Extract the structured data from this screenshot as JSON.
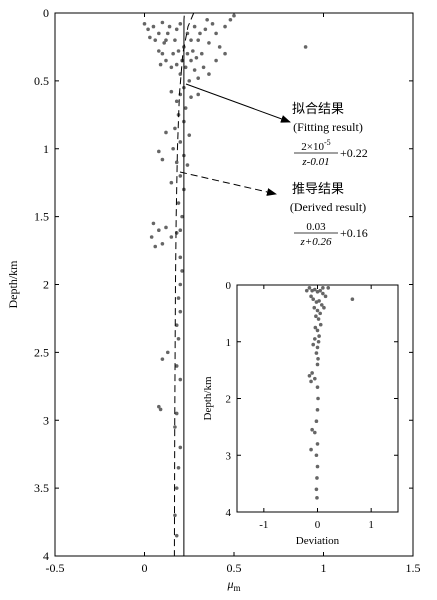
{
  "chart_data": [
    {
      "type": "scatter",
      "xlabel": "μ",
      "xlabel_sub": "m",
      "ylabel": "Depth/km",
      "xlim": [
        -0.5,
        1.5
      ],
      "ylim": [
        0,
        4
      ],
      "invert_y": true,
      "xticks": [
        -0.5,
        0,
        0.5,
        1,
        1.5
      ],
      "yticks": [
        0,
        0.5,
        1,
        1.5,
        2,
        2.5,
        3,
        3.5,
        4
      ],
      "series": [
        {
          "style": "points",
          "color": "#666666",
          "x": [
            0.0,
            0.02,
            0.05,
            0.08,
            0.1,
            0.12,
            0.14,
            0.16,
            0.18,
            0.2,
            0.22,
            0.24,
            0.26,
            0.28,
            0.3,
            0.32,
            0.34,
            0.36,
            0.38,
            0.4,
            0.42,
            0.45,
            0.48,
            0.15,
            0.2,
            0.25,
            0.18,
            0.22,
            0.28,
            0.3,
            0.12,
            0.1,
            0.06,
            0.03,
            0.08,
            0.24,
            0.26,
            0.33,
            0.35,
            0.4,
            0.17,
            0.19,
            0.21,
            0.23,
            0.27,
            0.29,
            0.31,
            0.13,
            0.11,
            0.09,
            0.2,
            0.18,
            0.23,
            0.15,
            0.26,
            0.19,
            0.22,
            0.17,
            0.12,
            0.25,
            0.2,
            0.16,
            0.22,
            0.1,
            0.08,
            0.18,
            0.24,
            0.2,
            0.15,
            0.22,
            0.19,
            0.21,
            0.2,
            0.05,
            0.08,
            0.04,
            0.1,
            0.15,
            0.18,
            0.12,
            0.06,
            0.2,
            0.21,
            0.2,
            0.19,
            0.2,
            0.18,
            0.19,
            0.1,
            0.13,
            0.18,
            0.2,
            0.08,
            0.09,
            0.18,
            0.17,
            0.2,
            0.19,
            0.18,
            0.17,
            0.18,
            0.9,
            0.5,
            0.45,
            0.36,
            0.3
          ],
          "values": [
            0.08,
            0.12,
            0.1,
            0.15,
            0.07,
            0.2,
            0.1,
            0.3,
            0.12,
            0.08,
            0.25,
            0.15,
            0.35,
            0.1,
            0.2,
            0.3,
            0.12,
            0.22,
            0.08,
            0.15,
            0.25,
            0.1,
            0.05,
            0.4,
            0.45,
            0.5,
            0.38,
            0.55,
            0.42,
            0.48,
            0.35,
            0.3,
            0.2,
            0.18,
            0.28,
            0.3,
            0.2,
            0.4,
            0.05,
            0.35,
            0.2,
            0.28,
            0.35,
            0.4,
            0.28,
            0.33,
            0.15,
            0.15,
            0.22,
            0.38,
            0.6,
            0.65,
            0.7,
            0.58,
            0.62,
            0.75,
            0.8,
            0.85,
            0.88,
            0.9,
            0.95,
            1.0,
            1.05,
            1.08,
            1.02,
            1.1,
            1.12,
            1.2,
            1.25,
            1.3,
            1.4,
            1.5,
            1.6,
            1.55,
            1.6,
            1.65,
            1.7,
            1.65,
            1.62,
            1.58,
            1.72,
            1.8,
            1.9,
            2.0,
            2.1,
            2.2,
            2.3,
            2.4,
            2.55,
            2.5,
            2.6,
            2.7,
            2.9,
            2.92,
            2.95,
            3.05,
            3.2,
            3.35,
            3.5,
            3.7,
            3.85,
            0.25,
            0.02,
            0.3,
            0.45,
            0.6
          ]
        },
        {
          "style": "solid",
          "color": "#000000",
          "x": [
            0.222,
            0.2205,
            0.22,
            0.22,
            0.22,
            0.22
          ],
          "values": [
            0.02,
            0.05,
            0.5,
            1,
            2,
            4
          ]
        },
        {
          "style": "dashed",
          "color": "#000000",
          "x": [
            0.275,
            0.243,
            0.214,
            0.195,
            0.184,
            0.177,
            0.173,
            0.169,
            0.167
          ],
          "values": [
            0,
            0.1,
            0.3,
            0.6,
            1,
            1.5,
            2,
            3,
            4
          ]
        }
      ],
      "annotations": [
        {
          "title": "拟合结果",
          "subtitle": "(Fitting result)",
          "numerator": "2×10",
          "numerator_sup": "-5",
          "denominator": "z-0.01",
          "tail": "+0.22"
        },
        {
          "title": "推导结果",
          "subtitle": "(Derived result)",
          "numerator": "0.03",
          "denominator": "z+0.26",
          "tail": "+0.16"
        }
      ]
    },
    {
      "type": "scatter",
      "xlabel": "Deviation",
      "ylabel": "Depth/km",
      "xlim": [
        -1.5,
        1.5
      ],
      "ylim": [
        0,
        4
      ],
      "invert_y": true,
      "xticks": [
        -1,
        0,
        1
      ],
      "yticks": [
        0,
        1,
        2,
        3,
        4
      ],
      "series": [
        {
          "style": "points",
          "color": "#666666",
          "x": [
            -0.15,
            -0.1,
            -0.05,
            0,
            0.05,
            0.1,
            0.15,
            -0.12,
            -0.08,
            -0.02,
            0.03,
            0.08,
            0.12,
            -0.06,
            0,
            0.05,
            -0.03,
            0.02,
            0.06,
            -0.04,
            0,
            0.03,
            -0.05,
            0.02,
            -0.08,
            0,
            -0.02,
            0.01,
            -0.1,
            -0.15,
            -0.12,
            -0.05,
            0,
            0,
            0.01,
            0,
            -0.02,
            -0.1,
            -0.05,
            0,
            -0.12,
            -0.02,
            0,
            -0.01,
            -0.02,
            -0.01,
            0.65,
            0.2,
            -0.2,
            0.1
          ],
          "values": [
            0.05,
            0.1,
            0.08,
            0.12,
            0.1,
            0.15,
            0.2,
            0.2,
            0.25,
            0.3,
            0.28,
            0.35,
            0.4,
            0.4,
            0.45,
            0.5,
            0.55,
            0.6,
            0.7,
            0.75,
            0.8,
            0.9,
            0.95,
            1.0,
            1.05,
            1.1,
            1.2,
            1.3,
            1.55,
            1.6,
            1.7,
            1.65,
            1.4,
            1.8,
            2.0,
            2.2,
            2.4,
            2.55,
            2.6,
            2.8,
            2.9,
            3.0,
            3.2,
            3.4,
            3.6,
            3.75,
            0.25,
            0.05,
            0.1,
            0.05
          ]
        }
      ]
    }
  ]
}
